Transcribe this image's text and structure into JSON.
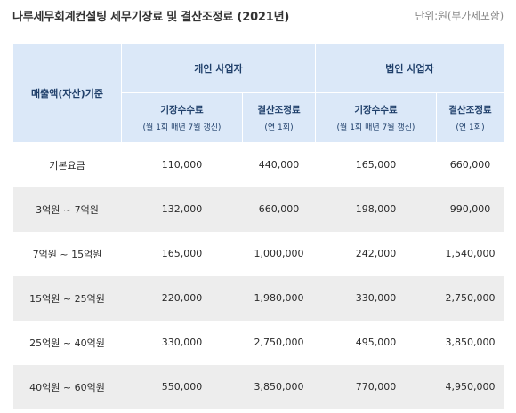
{
  "header": {
    "title": "나루세무회계컨설팅 세무기장료 및 결산조정료 (2021년)",
    "unit_note": "단위:원(부가세포함)"
  },
  "table": {
    "basis_header": "매출액(자산)기준",
    "groups": [
      {
        "label": "개인 사업자"
      },
      {
        "label": "법인 사업자"
      }
    ],
    "subheaders": [
      {
        "title": "기장수수료",
        "note": "(월 1회 매년 7월 갱신)"
      },
      {
        "title": "결산조정료",
        "note": "(연 1회)"
      },
      {
        "title": "기장수수료",
        "note": "(월 1회 매년 7월 갱신)"
      },
      {
        "title": "결산조정료",
        "note": "(연 1회)"
      }
    ],
    "rows": [
      {
        "basis": "기본요금",
        "values": [
          "110,000",
          "440,000",
          "165,000",
          "660,000"
        ]
      },
      {
        "basis": "3억원 ~ 7억원",
        "values": [
          "132,000",
          "660,000",
          "198,000",
          "990,000"
        ]
      },
      {
        "basis": "7억원 ~ 15억원",
        "values": [
          "165,000",
          "1,000,000",
          "242,000",
          "1,540,000"
        ]
      },
      {
        "basis": "15억원 ~ 25억원",
        "values": [
          "220,000",
          "1,980,000",
          "330,000",
          "2,750,000"
        ]
      },
      {
        "basis": "25억원 ~ 40억원",
        "values": [
          "330,000",
          "2,750,000",
          "495,000",
          "3,850,000"
        ]
      },
      {
        "basis": "40억원 ~ 60억원",
        "values": [
          "550,000",
          "3,850,000",
          "770,000",
          "4,950,000"
        ]
      }
    ]
  },
  "colors": {
    "header_background": "#dbe8f8",
    "header_text": "#1f3f6a",
    "stripe_background": "#ededed"
  }
}
